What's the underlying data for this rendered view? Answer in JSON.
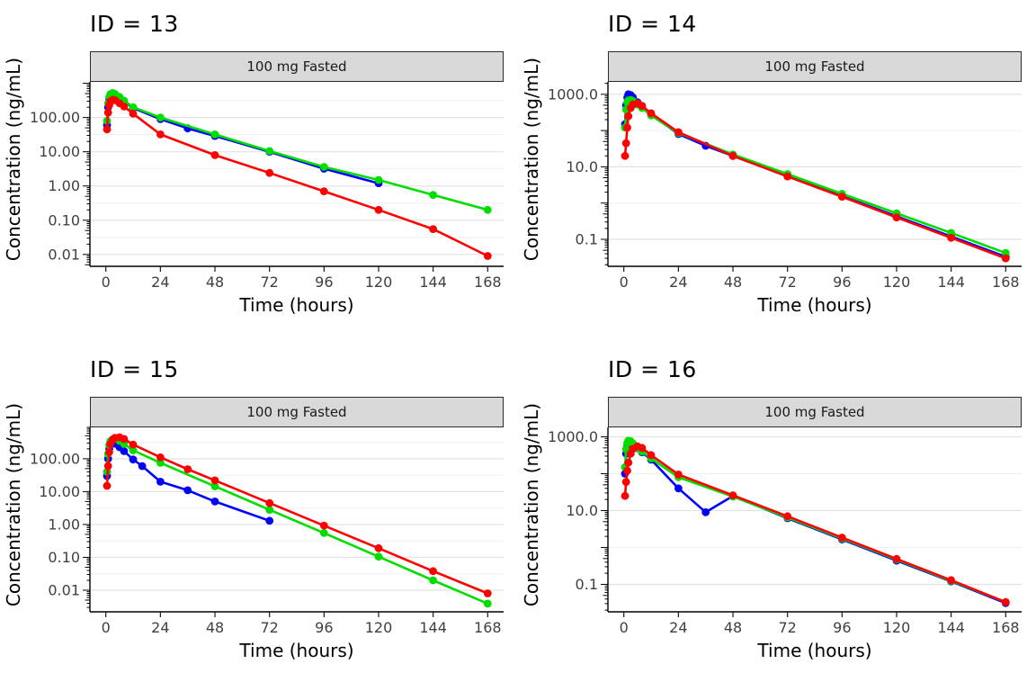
{
  "background": "#ffffff",
  "strip_style": {
    "fill": "#d9d9d9",
    "border": "#2b2b2b"
  },
  "chart_data": [
    {
      "type": "line",
      "title": "ID = 13",
      "strip_label": "100 mg Fasted",
      "xlabel": "Time (hours)",
      "ylabel": "Concentration (ng/mL)",
      "ylog": true,
      "legend": "none",
      "grid": "horizontal",
      "xlim": [
        -7,
        175
      ],
      "ylim": [
        0.0045,
        1100
      ],
      "x_ticks": [
        0,
        24,
        48,
        72,
        96,
        120,
        144,
        168
      ],
      "y_ticks": [
        {
          "v": 100,
          "label": "100.00"
        },
        {
          "v": 10,
          "label": "10.00"
        },
        {
          "v": 1,
          "label": "1.00"
        },
        {
          "v": 0.1,
          "label": "0.10"
        },
        {
          "v": 0.01,
          "label": "0.01"
        }
      ],
      "y_minor": [
        316,
        31.6,
        3.16,
        0.316,
        0.0316
      ],
      "series": [
        {
          "name": "blue",
          "color": "#0000FF",
          "x": [
            0.5,
            1,
            1.5,
            2,
            3,
            4,
            6,
            8,
            12,
            24,
            36,
            48,
            72,
            96,
            120
          ],
          "y": [
            60,
            200,
            350,
            450,
            500,
            470,
            380,
            300,
            190,
            90,
            48,
            29,
            10,
            3.2,
            1.2
          ]
        },
        {
          "name": "green",
          "color": "#00DE00",
          "x": [
            0.5,
            1,
            1.5,
            2,
            3,
            4,
            6,
            8,
            12,
            24,
            48,
            72,
            96,
            120,
            144,
            168
          ],
          "y": [
            80,
            260,
            400,
            480,
            520,
            490,
            400,
            310,
            200,
            100,
            32,
            10.5,
            3.6,
            1.5,
            0.55,
            0.2
          ]
        },
        {
          "name": "red",
          "color": "#FF0000",
          "x": [
            0.5,
            1,
            1.5,
            2,
            3,
            4,
            6,
            8,
            12,
            24,
            48,
            72,
            96,
            120,
            144,
            168
          ],
          "y": [
            45,
            140,
            230,
            300,
            330,
            320,
            260,
            210,
            130,
            32,
            8,
            2.4,
            0.7,
            0.2,
            0.055,
            0.009
          ]
        }
      ]
    },
    {
      "type": "line",
      "title": "ID = 14",
      "strip_label": "100 mg Fasted",
      "xlabel": "Time (hours)",
      "ylabel": "Concentration (ng/mL)",
      "ylog": true,
      "legend": "none",
      "grid": "horizontal",
      "xlim": [
        -7,
        175
      ],
      "ylim": [
        0.018,
        2200
      ],
      "x_ticks": [
        0,
        24,
        48,
        72,
        96,
        120,
        144,
        168
      ],
      "y_ticks": [
        {
          "v": 1000,
          "label": "1000.0"
        },
        {
          "v": 10,
          "label": "10.0"
        },
        {
          "v": 0.1,
          "label": "0.1"
        }
      ],
      "y_minor": [
        100,
        1
      ],
      "series": [
        {
          "name": "blue",
          "color": "#0000FF",
          "x": [
            0.5,
            1,
            1.5,
            2,
            3,
            4,
            6,
            8,
            12,
            24,
            36,
            48,
            72,
            96,
            120,
            144,
            168
          ],
          "y": [
            150,
            500,
            820,
            1000,
            950,
            820,
            600,
            460,
            280,
            80,
            38,
            20,
            5.6,
            1.55,
            0.43,
            0.12,
            0.033
          ]
        },
        {
          "name": "green",
          "color": "#00DE00",
          "x": [
            0.5,
            1,
            1.5,
            2,
            3,
            4,
            6,
            8,
            12,
            24,
            48,
            72,
            96,
            120,
            144,
            168
          ],
          "y": [
            120,
            380,
            600,
            680,
            700,
            650,
            520,
            420,
            260,
            85,
            22,
            6.3,
            1.8,
            0.52,
            0.15,
            0.042
          ]
        },
        {
          "name": "red",
          "color": "#FF0000",
          "x": [
            0.5,
            1,
            1.5,
            2,
            3,
            4,
            6,
            8,
            12,
            24,
            48,
            72,
            96,
            120,
            144,
            168
          ],
          "y": [
            20,
            45,
            120,
            250,
            420,
            520,
            560,
            480,
            300,
            90,
            20,
            5.4,
            1.5,
            0.4,
            0.11,
            0.03
          ]
        }
      ]
    },
    {
      "type": "line",
      "title": "ID = 15",
      "strip_label": "100 mg Fasted",
      "xlabel": "Time (hours)",
      "ylabel": "Concentration (ng/mL)",
      "ylog": true,
      "legend": "none",
      "grid": "horizontal",
      "xlim": [
        -7,
        175
      ],
      "ylim": [
        0.0022,
        900
      ],
      "x_ticks": [
        0,
        24,
        48,
        72,
        96,
        120,
        144,
        168
      ],
      "y_ticks": [
        {
          "v": 100,
          "label": "100.00"
        },
        {
          "v": 10,
          "label": "10.00"
        },
        {
          "v": 1,
          "label": "1.00"
        },
        {
          "v": 0.1,
          "label": "0.10"
        },
        {
          "v": 0.01,
          "label": "0.01"
        }
      ],
      "y_minor": [
        316,
        31.6,
        3.16,
        0.316,
        0.0316
      ],
      "series": [
        {
          "name": "blue",
          "color": "#0000FF",
          "x": [
            0.5,
            1,
            1.5,
            2,
            3,
            4,
            6,
            8,
            12,
            16,
            24,
            36,
            48,
            72
          ],
          "y": [
            30,
            100,
            200,
            270,
            300,
            285,
            225,
            170,
            95,
            60,
            20,
            11,
            5,
            1.3
          ]
        },
        {
          "name": "green",
          "color": "#00DE00",
          "x": [
            0.5,
            1,
            1.5,
            2,
            3,
            4,
            6,
            8,
            12,
            24,
            48,
            72,
            96,
            120,
            144,
            168
          ],
          "y": [
            40,
            140,
            260,
            340,
            390,
            400,
            350,
            280,
            180,
            75,
            14.5,
            2.8,
            0.55,
            0.105,
            0.02,
            0.0039
          ]
        },
        {
          "name": "red",
          "color": "#FF0000",
          "x": [
            0.5,
            1,
            1.5,
            2,
            3,
            4,
            6,
            8,
            12,
            24,
            36,
            48,
            72,
            96,
            120,
            144,
            168
          ],
          "y": [
            15,
            60,
            160,
            280,
            380,
            430,
            450,
            400,
            270,
            110,
            48,
            22,
            4.5,
            0.92,
            0.19,
            0.038,
            0.008
          ]
        }
      ]
    },
    {
      "type": "line",
      "title": "ID = 16",
      "strip_label": "100 mg Fasted",
      "xlabel": "Time (hours)",
      "ylabel": "Concentration (ng/mL)",
      "ylog": true,
      "legend": "none",
      "grid": "horizontal",
      "xlim": [
        -7,
        175
      ],
      "ylim": [
        0.018,
        1800
      ],
      "x_ticks": [
        0,
        24,
        48,
        72,
        96,
        120,
        144,
        168
      ],
      "y_ticks": [
        {
          "v": 1000,
          "label": "1000.0"
        },
        {
          "v": 10,
          "label": "10.0"
        },
        {
          "v": 0.1,
          "label": "0.1"
        }
      ],
      "y_minor": [
        100,
        1
      ],
      "series": [
        {
          "name": "blue",
          "color": "#0000FF",
          "x": [
            0.5,
            1,
            1.5,
            2,
            3,
            4,
            6,
            8,
            12,
            24,
            36,
            48,
            72,
            96,
            120,
            144,
            168
          ],
          "y": [
            100,
            350,
            550,
            650,
            700,
            640,
            490,
            380,
            240,
            40,
            9,
            25,
            6.2,
            1.65,
            0.44,
            0.12,
            0.031
          ]
        },
        {
          "name": "green",
          "color": "#00DE00",
          "x": [
            0.5,
            1,
            1.5,
            2,
            3,
            4,
            6,
            8,
            12,
            24,
            48,
            72,
            96,
            120,
            144,
            168
          ],
          "y": [
            150,
            460,
            680,
            780,
            760,
            660,
            500,
            400,
            260,
            80,
            24,
            6.5,
            1.75,
            0.47,
            0.125,
            0.033
          ]
        },
        {
          "name": "red",
          "color": "#FF0000",
          "x": [
            0.5,
            1,
            1.5,
            2,
            3,
            4,
            6,
            8,
            12,
            24,
            48,
            72,
            96,
            120,
            144,
            168
          ],
          "y": [
            25,
            60,
            120,
            200,
            350,
            470,
            550,
            500,
            320,
            95,
            26,
            7,
            1.85,
            0.49,
            0.13,
            0.033
          ]
        }
      ]
    }
  ]
}
